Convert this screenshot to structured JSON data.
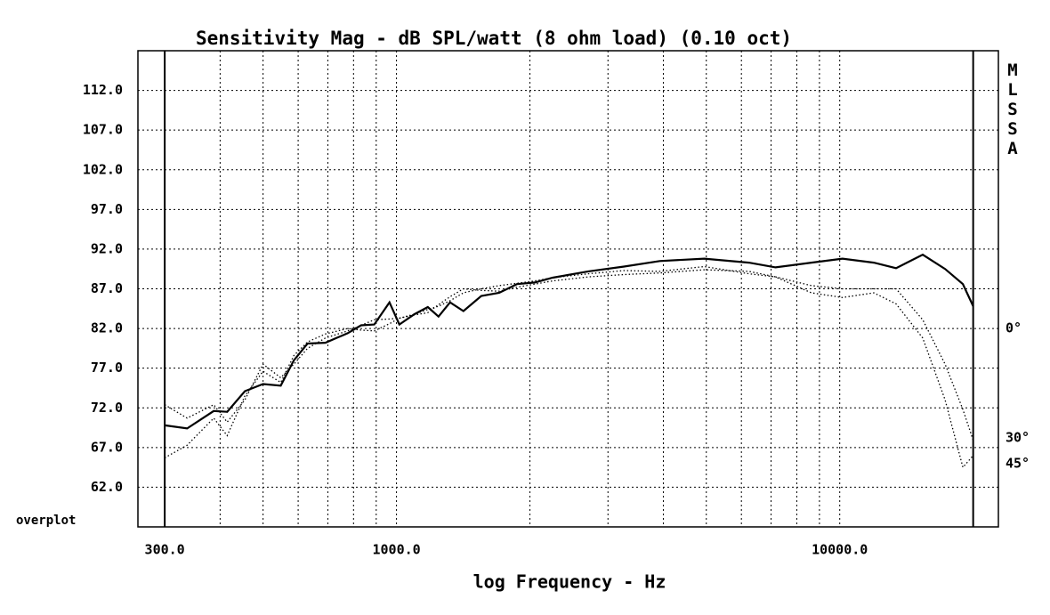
{
  "chart_data": {
    "type": "line",
    "title": "Sensitivity Mag - dB SPL/watt (8 ohm load) (0.10 oct)",
    "x_label": "log Frequency - Hz",
    "side_label": "MLSSA",
    "corner_label": "overplot",
    "x_scale": "log",
    "grid": true,
    "x": [
      300,
      337,
      387,
      415,
      455,
      500,
      548,
      587,
      630,
      691,
      776,
      832,
      891,
      964,
      1015,
      1098,
      1177,
      1244,
      1321,
      1416,
      1554,
      1705,
      1870,
      2052,
      2251,
      2709,
      3261,
      3925,
      4949,
      6238,
      7167,
      8628,
      10146,
      11936,
      13397,
      15395,
      17286,
      18961,
      20000
    ],
    "series": [
      {
        "name": "0°",
        "color": "#000000",
        "style": "solid",
        "values": [
          69.8,
          69.4,
          71.6,
          71.5,
          74.1,
          75.0,
          74.8,
          78.0,
          80.1,
          80.2,
          81.4,
          82.4,
          82.5,
          85.3,
          82.5,
          83.8,
          84.7,
          83.5,
          85.3,
          84.2,
          86.1,
          86.5,
          87.6,
          87.8,
          88.4,
          89.2,
          89.8,
          90.5,
          90.8,
          90.3,
          89.7,
          90.3,
          90.8,
          90.3,
          89.6,
          91.3,
          89.5,
          87.6,
          84.8
        ]
      },
      {
        "name": "30°",
        "color": "#000000",
        "style": "dotted",
        "values": [
          72.4,
          70.7,
          72.4,
          70.2,
          73.0,
          77.5,
          75.8,
          77.5,
          79.5,
          80.8,
          81.7,
          82.4,
          83.1,
          83.2,
          83.3,
          83.8,
          84.4,
          84.8,
          85.5,
          86.5,
          87.0,
          87.4,
          87.7,
          88.0,
          88.4,
          88.9,
          89.3,
          89.2,
          89.8,
          88.9,
          88.5,
          87.4,
          87.0,
          87.0,
          87.0,
          83.1,
          77.5,
          71.8,
          67.9
        ]
      },
      {
        "name": "45°",
        "color": "#000000",
        "style": "dotted",
        "values": [
          65.7,
          67.3,
          70.7,
          68.5,
          73.5,
          76.6,
          75.2,
          78.6,
          80.3,
          81.3,
          82.0,
          81.8,
          81.7,
          82.6,
          83.3,
          83.7,
          84.0,
          85.0,
          86.0,
          87.0,
          86.8,
          86.7,
          87.2,
          87.6,
          88.0,
          88.5,
          88.8,
          89.0,
          89.4,
          89.2,
          88.5,
          86.5,
          85.9,
          86.5,
          85.1,
          80.8,
          73.0,
          64.5,
          66.0
        ]
      }
    ],
    "xlim": [
      261,
      22800
    ],
    "xticks": [
      {
        "value": 300,
        "label": "300.0"
      },
      {
        "value": 1000,
        "label": "1000.0"
      },
      {
        "value": 10000,
        "label": "10000.0"
      }
    ],
    "xminor": [
      400,
      500,
      600,
      700,
      800,
      900,
      2000,
      3000,
      4000,
      5000,
      6000,
      7000,
      8000,
      9000,
      20000
    ],
    "ylim": [
      57,
      117
    ],
    "yticks": [
      {
        "value": 62,
        "label": "62.0"
      },
      {
        "value": 67,
        "label": "67.0"
      },
      {
        "value": 72,
        "label": "72.0"
      },
      {
        "value": 77,
        "label": "77.0"
      },
      {
        "value": 82,
        "label": "82.0"
      },
      {
        "value": 87,
        "label": "87.0"
      },
      {
        "value": 92,
        "label": "92.0"
      },
      {
        "value": 97,
        "label": "97.0"
      },
      {
        "value": 102,
        "label": "102.0"
      },
      {
        "value": 107,
        "label": "107.0"
      },
      {
        "value": 112,
        "label": "112.0"
      }
    ]
  }
}
